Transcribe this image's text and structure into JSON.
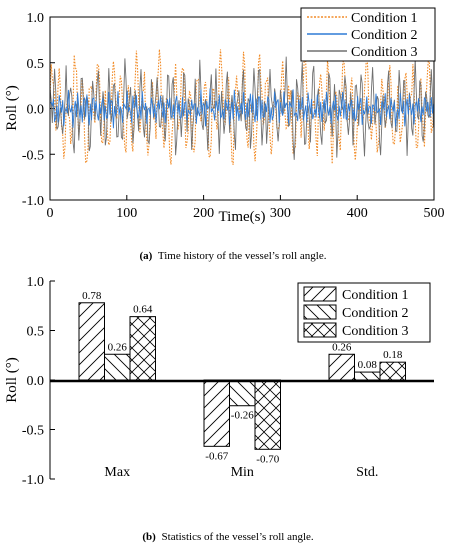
{
  "chart_data": [
    {
      "type": "line",
      "caption_label": "(a)",
      "caption": "Time history of the vessel’s roll angle.",
      "xlabel": "Time(s)",
      "ylabel": "Roll (°)",
      "xlim": [
        0,
        500
      ],
      "ylim": [
        -1.0,
        1.0
      ],
      "xticks": [
        "0",
        "100",
        "200",
        "300",
        "400",
        "500"
      ],
      "yticks": [
        "1.0",
        "0.5",
        "0.0",
        "-0.5",
        "-1.0"
      ],
      "legend_position": "top-right",
      "series": [
        {
          "name": "Condition 1",
          "color": "#f28c28",
          "style": "dotted",
          "amplitude": 0.78,
          "period": 10
        },
        {
          "name": "Condition 2",
          "color": "#2e7bd6",
          "style": "solid",
          "amplitude": 0.26,
          "period": 4
        },
        {
          "name": "Condition 3",
          "color": "#707070",
          "style": "solid",
          "amplitude": 0.64,
          "period": 7
        }
      ]
    },
    {
      "type": "bar",
      "caption_label": "(b)",
      "caption": "Statistics of the vessel’s roll angle.",
      "ylabel": "Roll (°)",
      "ylim": [
        -1.0,
        1.0
      ],
      "yticks": [
        "1.0",
        "0.5",
        "0.0",
        "-0.5",
        "-1.0"
      ],
      "categories": [
        "Max",
        "Min",
        "Std."
      ],
      "legend_position": "top-right",
      "series": [
        {
          "name": "Condition 1",
          "pattern": "forward-hatch",
          "values": [
            0.78,
            -0.67,
            0.26
          ],
          "labels": [
            "0.78",
            "-0.67",
            "0.26"
          ]
        },
        {
          "name": "Condition 2",
          "pattern": "back-hatch",
          "values": [
            0.26,
            -0.26,
            0.08
          ],
          "labels": [
            "0.26",
            "-0.26",
            "0.08"
          ]
        },
        {
          "name": "Condition 3",
          "pattern": "cross-hatch",
          "values": [
            0.64,
            -0.7,
            0.18
          ],
          "labels": [
            "0.64",
            "-0.70",
            "0.18"
          ]
        }
      ]
    }
  ]
}
